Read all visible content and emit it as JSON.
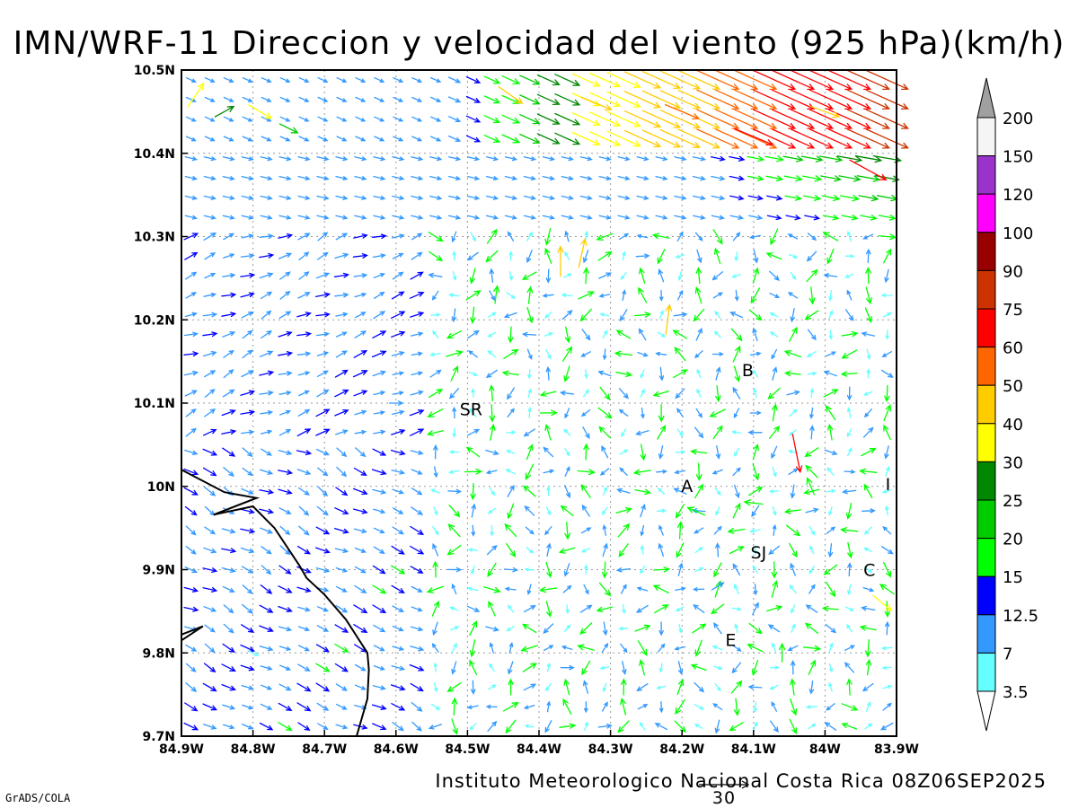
{
  "title": "IMN/WRF-11 Direccion y velocidad del viento (925 hPa)(km/h)",
  "footer": {
    "institution": "Instituto Meteorologico Nacional Costa Rica 08Z06SEP2025",
    "software": "GrADS/COLA",
    "reference_vector_label": "30"
  },
  "colorbar": {
    "levels": [
      "200",
      "150",
      "120",
      "100",
      "90",
      "75",
      "60",
      "50",
      "40",
      "30",
      "25",
      "20",
      "15",
      "12.5",
      "7",
      "3.5"
    ],
    "colors": [
      "#a0a0a0",
      "#f5f5f5",
      "#9933cc",
      "#ff00ff",
      "#990000",
      "#cc3300",
      "#ff0000",
      "#ff6600",
      "#ffcc00",
      "#ffff00",
      "#008800",
      "#00cc00",
      "#00ff00",
      "#0000ff",
      "#3399ff",
      "#66ffff",
      "#ffffff"
    ]
  },
  "places": [
    {
      "label": "SR",
      "lon": -84.495,
      "lat": 10.093
    },
    {
      "label": "B",
      "lon": -84.108,
      "lat": 10.14
    },
    {
      "label": "A",
      "lon": -84.193,
      "lat": 10.001
    },
    {
      "label": "SJ",
      "lon": -84.093,
      "lat": 9.921
    },
    {
      "label": "C",
      "lon": -83.938,
      "lat": 9.9
    },
    {
      "label": "E",
      "lon": -84.132,
      "lat": 9.816
    },
    {
      "label": "I",
      "lon": -83.912,
      "lat": 10.003
    }
  ],
  "chart_data": {
    "type": "vector-field",
    "variable": "wind direction and speed at 925 hPa",
    "units": "km/h",
    "xaxis": {
      "ticks": [
        "84.9W",
        "84.8W",
        "84.7W",
        "84.6W",
        "84.5W",
        "84.4W",
        "84.3W",
        "84.2W",
        "84.1W",
        "84W",
        "83.9W"
      ],
      "range": [
        -84.9,
        -83.9
      ]
    },
    "yaxis": {
      "ticks": [
        "10.5N",
        "10.4N",
        "10.3N",
        "10.2N",
        "10.1N",
        "10N",
        "9.9N",
        "9.8N",
        "9.7N"
      ],
      "range": [
        9.7,
        10.5
      ]
    },
    "grid": true,
    "coastline": [
      [
        -84.9,
        10.02
      ],
      [
        -84.84,
        9.993
      ],
      [
        -84.795,
        9.986
      ],
      [
        -84.855,
        9.966
      ],
      [
        -84.8,
        9.976
      ],
      [
        -84.77,
        9.95
      ],
      [
        -84.735,
        9.905
      ],
      [
        -84.725,
        9.89
      ],
      [
        -84.7,
        9.87
      ],
      [
        -84.67,
        9.84
      ],
      [
        -84.64,
        9.8
      ],
      [
        -84.638,
        9.78
      ],
      [
        -84.64,
        9.745
      ],
      [
        -84.655,
        9.7
      ]
    ],
    "coastline_inlet": [
      [
        -84.9,
        9.815
      ],
      [
        -84.87,
        9.832
      ],
      [
        -84.9,
        9.822
      ]
    ],
    "wind_vectors": [
      {
        "lon": -84.88,
        "lat": 10.47,
        "u": 12,
        "v": 18,
        "speed": 38
      },
      {
        "lon": -84.84,
        "lat": 10.45,
        "u": 18,
        "v": 10,
        "speed": 25
      },
      {
        "lon": -84.79,
        "lat": 10.45,
        "u": 20,
        "v": -12,
        "speed": 35
      },
      {
        "lon": -84.75,
        "lat": 10.43,
        "u": 16,
        "v": -8,
        "speed": 22
      },
      {
        "lon": -84.44,
        "lat": 10.47,
        "u": 20,
        "v": -14,
        "speed": 40
      },
      {
        "lon": -84.32,
        "lat": 10.46,
        "u": 24,
        "v": -10,
        "speed": 48
      },
      {
        "lon": -84.2,
        "lat": 10.45,
        "u": 24,
        "v": -10,
        "speed": 55
      },
      {
        "lon": -84.1,
        "lat": 10.42,
        "u": 24,
        "v": -10,
        "speed": 65
      },
      {
        "lon": -84.0,
        "lat": 10.45,
        "u": 22,
        "v": -8,
        "speed": 42
      },
      {
        "lon": -83.94,
        "lat": 10.38,
        "u": 22,
        "v": -12,
        "speed": 70
      },
      {
        "lon": -84.37,
        "lat": 10.27,
        "u": 0,
        "v": 28,
        "speed": 42
      },
      {
        "lon": -84.34,
        "lat": 10.28,
        "u": 4,
        "v": 18,
        "speed": 40
      },
      {
        "lon": -84.22,
        "lat": 10.2,
        "u": 3,
        "v": 24,
        "speed": 42
      },
      {
        "lon": -84.02,
        "lat": 10.0,
        "u": -6,
        "v": 14,
        "speed": 18
      },
      {
        "lon": -84.04,
        "lat": 10.04,
        "u": 4,
        "v": -20,
        "speed": 60
      },
      {
        "lon": -84.18,
        "lat": 9.97,
        "u": -14,
        "v": 6,
        "speed": 19
      },
      {
        "lon": -84.1,
        "lat": 9.98,
        "u": -16,
        "v": 2,
        "speed": 18
      },
      {
        "lon": -84.46,
        "lat": 10.23,
        "u": 2,
        "v": 16,
        "speed": 17
      },
      {
        "lon": -83.92,
        "lat": 9.86,
        "u": 12,
        "v": -10,
        "speed": 30
      },
      {
        "lon": -84.06,
        "lat": 9.8,
        "u": 0,
        "v": 14,
        "speed": 18
      },
      {
        "lon": -84.15,
        "lat": 9.88,
        "u": 10,
        "v": 6,
        "speed": 9
      },
      {
        "lon": -84.6,
        "lat": 10.1,
        "u": 12,
        "v": 0,
        "speed": 8
      },
      {
        "lon": -84.8,
        "lat": 9.8,
        "u": 12,
        "v": -6,
        "speed": 5
      }
    ]
  }
}
